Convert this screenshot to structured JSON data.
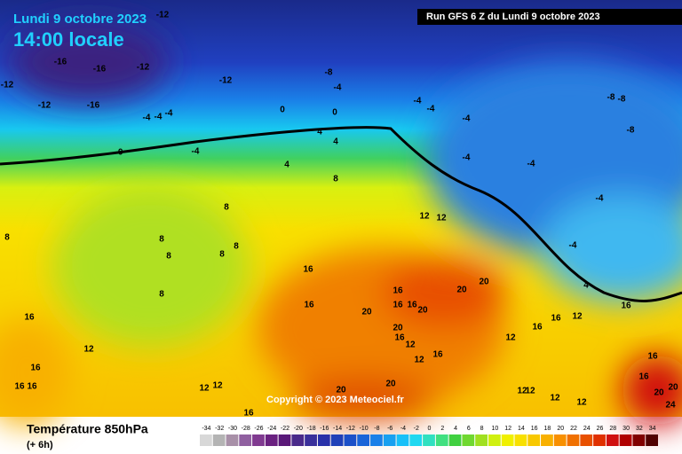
{
  "header": {
    "date": "Lundi 9 octobre 2023",
    "time": "14:00 locale",
    "run": "Run GFS 6 Z du Lundi 9 octobre 2023"
  },
  "copyright": "Copyright © 2023 Meteociel.fr",
  "footer": {
    "title": "Température 850hPa",
    "step": "(+ 6h)"
  },
  "scale": {
    "ticks": [
      -34,
      -32,
      -30,
      -28,
      -26,
      -24,
      -22,
      -20,
      -18,
      -16,
      -14,
      -12,
      -10,
      -8,
      -6,
      -4,
      -2,
      0,
      2,
      4,
      6,
      8,
      10,
      12,
      14,
      16,
      18,
      20,
      22,
      24,
      26,
      28,
      30,
      32,
      34
    ],
    "colors": [
      "#d8d8d8",
      "#b4b4b4",
      "#a890a8",
      "#9060a0",
      "#803a90",
      "#6a2080",
      "#5a1878",
      "#4a2a8a",
      "#3a2f9a",
      "#2a30a8",
      "#2040b8",
      "#1c50c8",
      "#1a64d8",
      "#1a80e8",
      "#18a0f0",
      "#18c0f8",
      "#20d8f0",
      "#30e0c0",
      "#40e080",
      "#40d040",
      "#70d830",
      "#a0e020",
      "#d0f010",
      "#f0f000",
      "#f8e000",
      "#f8c800",
      "#f8b000",
      "#f89000",
      "#f07000",
      "#e85000",
      "#e03000",
      "#d01010",
      "#b00000",
      "#800000",
      "#500000"
    ]
  },
  "contour_labels": [
    "-12",
    "-16",
    "-16",
    "-12",
    "-12",
    "-12",
    "-12",
    "-16",
    "-8",
    "-4",
    "-4",
    "-4",
    "-4",
    "-8",
    "-8",
    "-8",
    "-4",
    "-4",
    "-4",
    "0",
    "0",
    "-0",
    "-4",
    "4",
    "4",
    "4",
    "8",
    "8",
    "8",
    "8",
    "8",
    "8",
    "8",
    "8",
    "12",
    "16",
    "16",
    "16",
    "16",
    "16",
    "20",
    "20",
    "20",
    "20",
    "20",
    "16",
    "12",
    "12",
    "16",
    "12",
    "16",
    "16",
    "12",
    "4",
    "-4",
    "-4",
    "-4",
    "-4",
    "16",
    "12",
    "16",
    "16",
    "16",
    "12",
    "12",
    "16",
    "20",
    "20",
    "12",
    "12",
    "12",
    "16",
    "20",
    "24",
    "20",
    "16",
    "12",
    "12",
    "16"
  ]
}
